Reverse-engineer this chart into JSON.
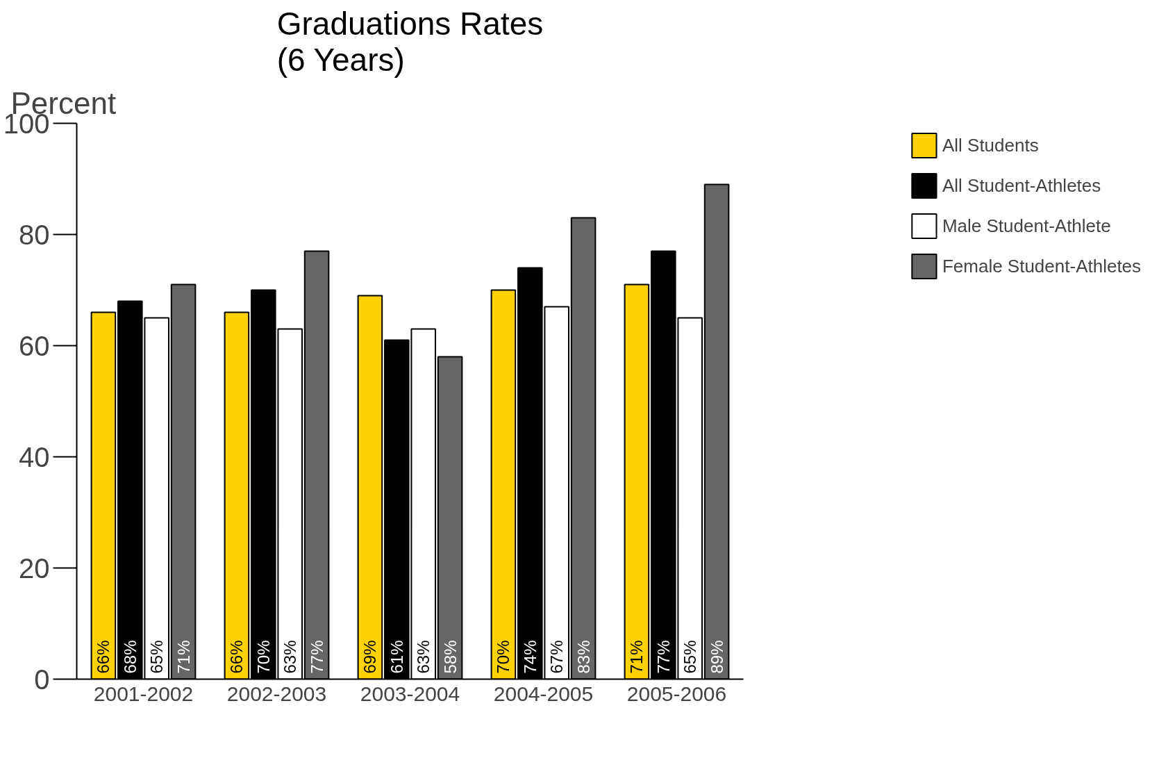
{
  "chart_data": {
    "type": "bar",
    "title": "Graduations Rates\n(6 Years)",
    "ylabel": "Percent",
    "categories": [
      "2001-2002",
      "2002-2003",
      "2003-2004",
      "2004-2005",
      "2005-2006"
    ],
    "series": [
      {
        "name": "All Students",
        "color": "#ffd200",
        "values": [
          66,
          66,
          69,
          70,
          71
        ],
        "value_labels": [
          "66%",
          "66%",
          "69%",
          "70%",
          "71%"
        ]
      },
      {
        "name": "All Student-Athletes",
        "color": "#000000",
        "values": [
          68,
          70,
          61,
          74,
          77
        ],
        "value_labels": [
          "68%",
          "70%",
          "61%",
          "74%",
          "77%"
        ]
      },
      {
        "name": "Male Student-Athlete",
        "color": "#ffffff",
        "values": [
          65,
          63,
          63,
          67,
          65
        ],
        "value_labels": [
          "65%",
          "63%",
          "63%",
          "67%",
          "65%"
        ]
      },
      {
        "name": "Female Student-Athletes",
        "color": "#666666",
        "values": [
          71,
          77,
          58,
          83,
          89
        ],
        "value_labels": [
          "71%",
          "77%",
          "58%",
          "83%",
          "89%"
        ]
      }
    ],
    "ylim": [
      0,
      100
    ],
    "yticks": [
      0,
      20,
      40,
      60,
      80,
      100
    ],
    "grid": false,
    "legend": "top right"
  }
}
